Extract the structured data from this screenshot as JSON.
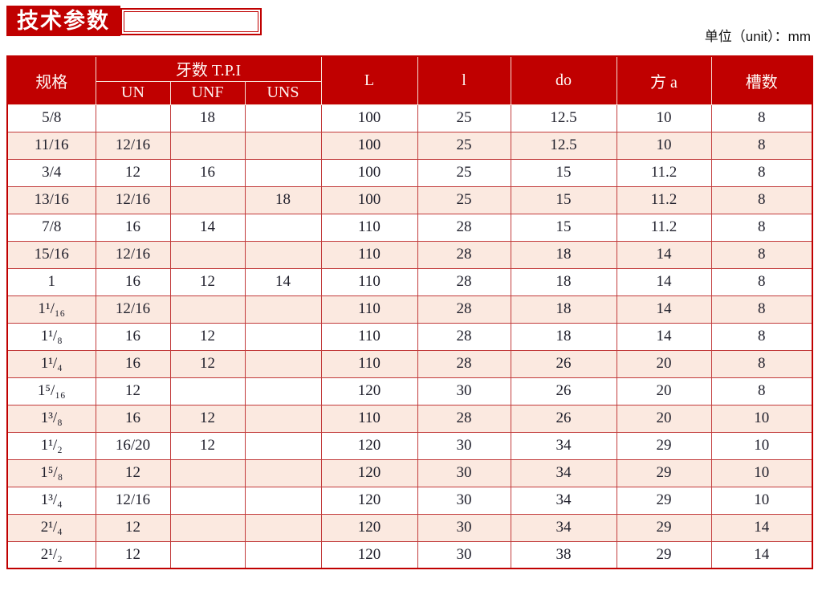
{
  "page": {
    "title": "技术参数",
    "unit_label": "单位（unit）：mm"
  },
  "colors": {
    "brand_red": "#c00000",
    "row_alt_pink": "#fbe9e0",
    "grid_red": "#c23b3b"
  },
  "table": {
    "headers": {
      "spec": "规格",
      "tpi_group": "牙数 T.P.I",
      "un": "UN",
      "unf": "UNF",
      "uns": "UNS",
      "L": "L",
      "l": "l",
      "do": "do",
      "a": "方 a",
      "slots": "槽数"
    },
    "row_keys": [
      "spec",
      "un",
      "unf",
      "uns",
      "L",
      "l",
      "do",
      "a",
      "slots"
    ],
    "rows": [
      {
        "spec": "5/8",
        "un": "",
        "unf": "18",
        "uns": "",
        "L": "100",
        "l": "25",
        "do": "12.5",
        "a": "10",
        "slots": "8"
      },
      {
        "spec": "11/16",
        "un": "12/16",
        "unf": "",
        "uns": "",
        "L": "100",
        "l": "25",
        "do": "12.5",
        "a": "10",
        "slots": "8"
      },
      {
        "spec": "3/4",
        "un": "12",
        "unf": "16",
        "uns": "",
        "L": "100",
        "l": "25",
        "do": "15",
        "a": "11.2",
        "slots": "8"
      },
      {
        "spec": "13/16",
        "un": "12/16",
        "unf": "",
        "uns": "18",
        "L": "100",
        "l": "25",
        "do": "15",
        "a": "11.2",
        "slots": "8"
      },
      {
        "spec": "7/8",
        "un": "16",
        "unf": "14",
        "uns": "",
        "L": "110",
        "l": "28",
        "do": "15",
        "a": "11.2",
        "slots": "8"
      },
      {
        "spec": "15/16",
        "un": "12/16",
        "unf": "",
        "uns": "",
        "L": "110",
        "l": "28",
        "do": "18",
        "a": "14",
        "slots": "8"
      },
      {
        "spec": "1",
        "un": "16",
        "unf": "12",
        "uns": "14",
        "L": "110",
        "l": "28",
        "do": "18",
        "a": "14",
        "slots": "8"
      },
      {
        "spec": "1¹/₁₆",
        "un": "12/16",
        "unf": "",
        "uns": "",
        "L": "110",
        "l": "28",
        "do": "18",
        "a": "14",
        "slots": "8"
      },
      {
        "spec": "1¹/₈",
        "un": "16",
        "unf": "12",
        "uns": "",
        "L": "110",
        "l": "28",
        "do": "18",
        "a": "14",
        "slots": "8"
      },
      {
        "spec": "1¹/₄",
        "un": "16",
        "unf": "12",
        "uns": "",
        "L": "110",
        "l": "28",
        "do": "26",
        "a": "20",
        "slots": "8"
      },
      {
        "spec": "1⁵/₁₆",
        "un": "12",
        "unf": "",
        "uns": "",
        "L": "120",
        "l": "30",
        "do": "26",
        "a": "20",
        "slots": "8"
      },
      {
        "spec": "1³/₈",
        "un": "16",
        "unf": "12",
        "uns": "",
        "L": "110",
        "l": "28",
        "do": "26",
        "a": "20",
        "slots": "10"
      },
      {
        "spec": "1¹/₂",
        "un": "16/20",
        "unf": "12",
        "uns": "",
        "L": "120",
        "l": "30",
        "do": "34",
        "a": "29",
        "slots": "10"
      },
      {
        "spec": "1⁵/₈",
        "un": "12",
        "unf": "",
        "uns": "",
        "L": "120",
        "l": "30",
        "do": "34",
        "a": "29",
        "slots": "10"
      },
      {
        "spec": "1³/₄",
        "un": "12/16",
        "unf": "",
        "uns": "",
        "L": "120",
        "l": "30",
        "do": "34",
        "a": "29",
        "slots": "10"
      },
      {
        "spec": "2¹/₄",
        "un": "12",
        "unf": "",
        "uns": "",
        "L": "120",
        "l": "30",
        "do": "34",
        "a": "29",
        "slots": "14"
      },
      {
        "spec": "2¹/₂",
        "un": "12",
        "unf": "",
        "uns": "",
        "L": "120",
        "l": "30",
        "do": "38",
        "a": "29",
        "slots": "14"
      }
    ]
  }
}
